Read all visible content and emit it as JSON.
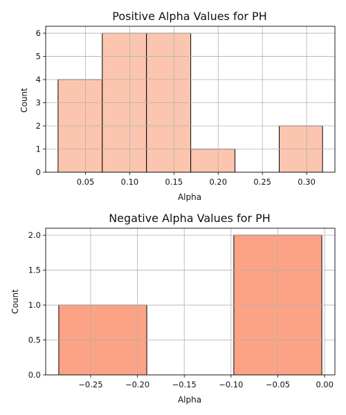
{
  "chart_data": [
    {
      "type": "bar",
      "title": "Positive Alpha Values for PH",
      "xlabel": "Alpha",
      "ylabel": "Count",
      "xlim": [
        0.005,
        0.332
      ],
      "ylim": [
        0,
        6.3
      ],
      "xticks": [
        "0.05",
        "0.10",
        "0.15",
        "0.20",
        "0.25",
        "0.30"
      ],
      "yticks": [
        "0",
        "1",
        "2",
        "3",
        "4",
        "5",
        "6"
      ],
      "bins": [
        {
          "start": 0.019,
          "end": 0.069,
          "count": 4
        },
        {
          "start": 0.069,
          "end": 0.119,
          "count": 6
        },
        {
          "start": 0.119,
          "end": 0.169,
          "count": 6
        },
        {
          "start": 0.169,
          "end": 0.219,
          "count": 1
        },
        {
          "start": 0.219,
          "end": 0.269,
          "count": 0
        },
        {
          "start": 0.269,
          "end": 0.318,
          "count": 2
        }
      ],
      "bar_color": "#fcc5b0",
      "edge_color": "#000000",
      "grid": true
    },
    {
      "type": "bar",
      "title": "Negative Alpha Values for PH",
      "xlabel": "Alpha",
      "ylabel": "Count",
      "xlim": [
        -0.298,
        0.011
      ],
      "ylim": [
        0,
        2.1
      ],
      "xticks": [
        "−0.25",
        "−0.20",
        "−0.15",
        "−0.10",
        "−0.05",
        "0.00"
      ],
      "yticks": [
        "0.0",
        "0.5",
        "1.0",
        "1.5",
        "2.0"
      ],
      "bins": [
        {
          "start": -0.284,
          "end": -0.19,
          "count": 1
        },
        {
          "start": -0.19,
          "end": -0.097,
          "count": 0
        },
        {
          "start": -0.097,
          "end": -0.003,
          "count": 2
        }
      ],
      "bar_color": "#fca385",
      "edge_color": "#000000",
      "grid": true
    }
  ]
}
